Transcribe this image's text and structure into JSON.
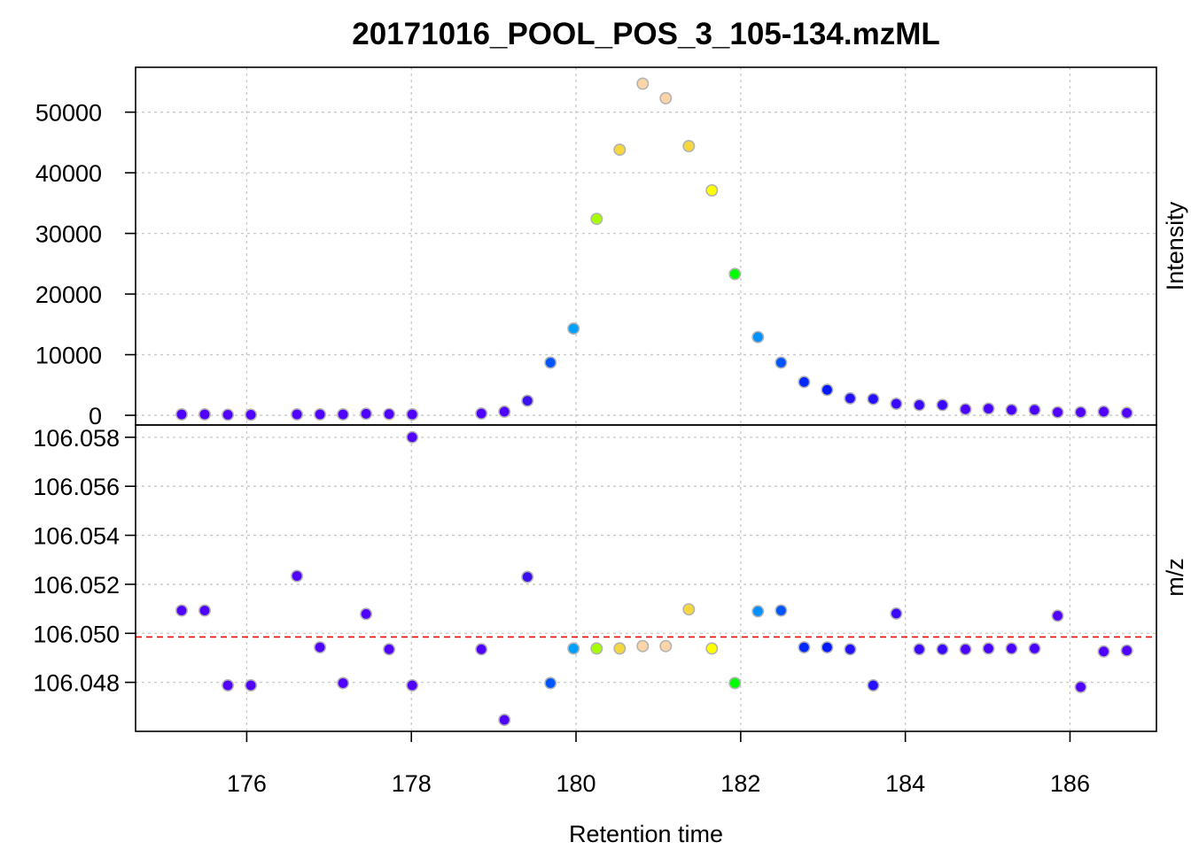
{
  "chart_data": {
    "type": "scatter",
    "title": "20171016_POOL_POS_3_105-134.mzML",
    "xlabel": "Retention time",
    "xlim": [
      174.65,
      187.05
    ],
    "xticks": [
      176,
      178,
      180,
      182,
      184,
      186
    ],
    "grid": true,
    "panels": [
      {
        "ylabel": "Intensity",
        "ylim": [
          -1600,
          57400
        ],
        "yticks": [
          0,
          10000,
          20000,
          30000,
          40000,
          50000
        ]
      },
      {
        "ylabel": "m/z",
        "ylim": [
          106.046,
          106.0585
        ],
        "yticks": [
          106.048,
          106.05,
          106.052,
          106.054,
          106.056,
          106.058
        ],
        "reference_mz": 106.04985,
        "reference_color": "#ff0000"
      }
    ],
    "points": [
      {
        "rt": 175.21,
        "intensity": 150,
        "mz": 106.05093,
        "color": "#5000ff"
      },
      {
        "rt": 175.49,
        "intensity": 150,
        "mz": 106.05093,
        "color": "#5000ff"
      },
      {
        "rt": 175.77,
        "intensity": 100,
        "mz": 106.04788,
        "color": "#5000ff"
      },
      {
        "rt": 176.05,
        "intensity": 100,
        "mz": 106.04788,
        "color": "#5000ff"
      },
      {
        "rt": 176.61,
        "intensity": 150,
        "mz": 106.05234,
        "color": "#5000ff"
      },
      {
        "rt": 176.89,
        "intensity": 150,
        "mz": 106.04943,
        "color": "#5000ff"
      },
      {
        "rt": 177.17,
        "intensity": 150,
        "mz": 106.04797,
        "color": "#5000ff"
      },
      {
        "rt": 177.45,
        "intensity": 250,
        "mz": 106.05079,
        "color": "#5000ff"
      },
      {
        "rt": 177.73,
        "intensity": 200,
        "mz": 106.04935,
        "color": "#5000ff"
      },
      {
        "rt": 178.01,
        "intensity": 150,
        "mz": 106.058,
        "color": "#5000ff"
      },
      {
        "rt": 178.01,
        "intensity": 150,
        "mz": 106.04788,
        "color": "#5000ff"
      },
      {
        "rt": 178.85,
        "intensity": 300,
        "mz": 106.04935,
        "color": "#5000ff"
      },
      {
        "rt": 179.13,
        "intensity": 600,
        "mz": 106.04647,
        "color": "#5000ff"
      },
      {
        "rt": 179.41,
        "intensity": 2400,
        "mz": 106.0523,
        "color": "#3a10ee"
      },
      {
        "rt": 179.69,
        "intensity": 8700,
        "mz": 106.04797,
        "color": "#0055ff"
      },
      {
        "rt": 179.97,
        "intensity": 14300,
        "mz": 106.04938,
        "color": "#00a0ff"
      },
      {
        "rt": 180.25,
        "intensity": 32400,
        "mz": 106.04938,
        "color": "#a6ff00"
      },
      {
        "rt": 180.53,
        "intensity": 43800,
        "mz": 106.04938,
        "color": "#f5d840"
      },
      {
        "rt": 180.81,
        "intensity": 54700,
        "mz": 106.04948,
        "color": "#fbd5a8"
      },
      {
        "rt": 181.09,
        "intensity": 52300,
        "mz": 106.04948,
        "color": "#fbd5a8"
      },
      {
        "rt": 181.37,
        "intensity": 44400,
        "mz": 106.05098,
        "color": "#f5d840"
      },
      {
        "rt": 181.65,
        "intensity": 37100,
        "mz": 106.04938,
        "color": "#ffff00"
      },
      {
        "rt": 181.93,
        "intensity": 23300,
        "mz": 106.04797,
        "color": "#00ff00"
      },
      {
        "rt": 182.21,
        "intensity": 12900,
        "mz": 106.0509,
        "color": "#0090ff"
      },
      {
        "rt": 182.49,
        "intensity": 8700,
        "mz": 106.05093,
        "color": "#0055ff"
      },
      {
        "rt": 182.77,
        "intensity": 5500,
        "mz": 106.04943,
        "color": "#0028ff"
      },
      {
        "rt": 183.05,
        "intensity": 4200,
        "mz": 106.04943,
        "color": "#0018ff"
      },
      {
        "rt": 183.33,
        "intensity": 2800,
        "mz": 106.04935,
        "color": "#2510ff"
      },
      {
        "rt": 183.61,
        "intensity": 2700,
        "mz": 106.04788,
        "color": "#2510ff"
      },
      {
        "rt": 183.89,
        "intensity": 1900,
        "mz": 106.05081,
        "color": "#3a08ff"
      },
      {
        "rt": 184.17,
        "intensity": 1700,
        "mz": 106.04935,
        "color": "#3a08ff"
      },
      {
        "rt": 184.45,
        "intensity": 1700,
        "mz": 106.04935,
        "color": "#3a08ff"
      },
      {
        "rt": 184.73,
        "intensity": 1000,
        "mz": 106.04935,
        "color": "#4a02ff"
      },
      {
        "rt": 185.01,
        "intensity": 1100,
        "mz": 106.04938,
        "color": "#4a02ff"
      },
      {
        "rt": 185.29,
        "intensity": 900,
        "mz": 106.04938,
        "color": "#4a02ff"
      },
      {
        "rt": 185.57,
        "intensity": 900,
        "mz": 106.04938,
        "color": "#4a02ff"
      },
      {
        "rt": 185.85,
        "intensity": 500,
        "mz": 106.05072,
        "color": "#5000ff"
      },
      {
        "rt": 186.13,
        "intensity": 500,
        "mz": 106.04781,
        "color": "#5000ff"
      },
      {
        "rt": 186.41,
        "intensity": 600,
        "mz": 106.04926,
        "color": "#5000ff"
      },
      {
        "rt": 186.69,
        "intensity": 400,
        "mz": 106.0493,
        "color": "#5000ff"
      }
    ]
  }
}
